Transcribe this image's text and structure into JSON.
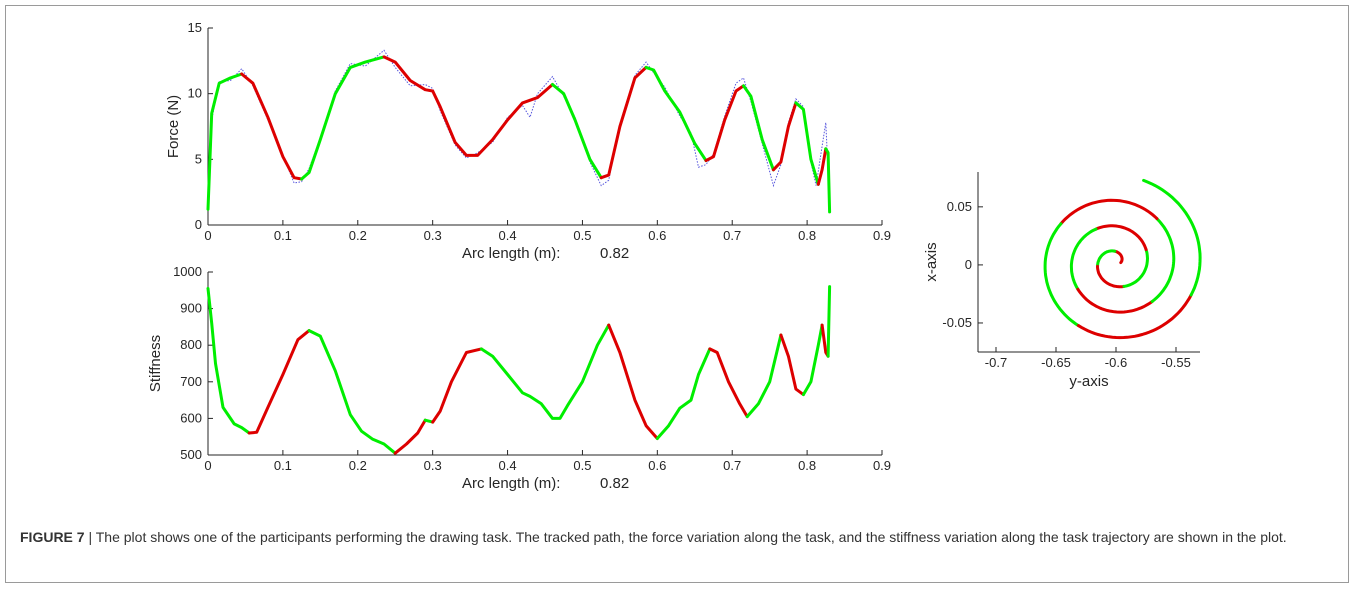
{
  "caption": {
    "label": "FIGURE 7",
    "separator": " | ",
    "text": "The plot shows one of the participants performing the drawing task. The tracked path, the force variation along the task, and the stiffness variation along the task trajectory are shown in the plot."
  },
  "colors": {
    "green": "#00ee00",
    "red": "#dd0000",
    "dotted": "#5555dd",
    "axis": "#262626"
  },
  "chart_data": [
    {
      "type": "line",
      "ylabel": "Force (N)",
      "xlabel": "Arc length (m):",
      "xlabel_value": "0.82",
      "xlim": [
        0,
        0.9
      ],
      "ylim": [
        0,
        15
      ],
      "xticks": [
        "0",
        "0.1",
        "0.2",
        "0.3",
        "0.4",
        "0.5",
        "0.6",
        "0.7",
        "0.8",
        "0.9"
      ],
      "yticks": [
        "0",
        "5",
        "10",
        "15"
      ],
      "segment_color_order": [
        "green",
        "red"
      ],
      "series": [
        {
          "style": "solid, color-coded green/red",
          "points": [
            [
              0,
              1.2
            ],
            [
              0.005,
              8.5
            ],
            [
              0.015,
              10.8
            ],
            [
              0.03,
              11.2
            ],
            [
              0.045,
              11.5
            ],
            [
              0.06,
              10.8
            ],
            [
              0.08,
              8.2
            ],
            [
              0.1,
              5.2
            ],
            [
              0.115,
              3.6
            ],
            [
              0.125,
              3.5
            ],
            [
              0.135,
              4.0
            ],
            [
              0.15,
              6.5
            ],
            [
              0.17,
              10.0
            ],
            [
              0.19,
              12.0
            ],
            [
              0.21,
              12.4
            ],
            [
              0.235,
              12.8
            ],
            [
              0.25,
              12.4
            ],
            [
              0.27,
              11.0
            ],
            [
              0.29,
              10.3
            ],
            [
              0.3,
              10.2
            ],
            [
              0.31,
              9.0
            ],
            [
              0.33,
              6.3
            ],
            [
              0.345,
              5.3
            ],
            [
              0.36,
              5.3
            ],
            [
              0.38,
              6.5
            ],
            [
              0.4,
              8.0
            ],
            [
              0.42,
              9.3
            ],
            [
              0.44,
              9.7
            ],
            [
              0.46,
              10.7
            ],
            [
              0.475,
              10.0
            ],
            [
              0.49,
              8.0
            ],
            [
              0.51,
              5.0
            ],
            [
              0.525,
              3.6
            ],
            [
              0.535,
              3.8
            ],
            [
              0.55,
              7.5
            ],
            [
              0.57,
              11.2
            ],
            [
              0.585,
              12.0
            ],
            [
              0.595,
              11.8
            ],
            [
              0.61,
              10.2
            ],
            [
              0.63,
              8.6
            ],
            [
              0.65,
              6.2
            ],
            [
              0.665,
              4.9
            ],
            [
              0.675,
              5.2
            ],
            [
              0.69,
              8.0
            ],
            [
              0.705,
              10.2
            ],
            [
              0.715,
              10.6
            ],
            [
              0.725,
              9.8
            ],
            [
              0.74,
              6.5
            ],
            [
              0.755,
              4.2
            ],
            [
              0.765,
              4.8
            ],
            [
              0.775,
              7.5
            ],
            [
              0.785,
              9.3
            ],
            [
              0.795,
              8.8
            ],
            [
              0.805,
              5.0
            ],
            [
              0.815,
              3.1
            ],
            [
              0.82,
              4.2
            ],
            [
              0.825,
              5.8
            ],
            [
              0.828,
              5.5
            ],
            [
              0.83,
              1.0
            ]
          ]
        },
        {
          "style": "dotted blue",
          "points": [
            [
              0,
              1.3
            ],
            [
              0.005,
              8.0
            ],
            [
              0.015,
              10.9
            ],
            [
              0.03,
              11.0
            ],
            [
              0.045,
              11.9
            ],
            [
              0.06,
              10.6
            ],
            [
              0.08,
              8.0
            ],
            [
              0.1,
              5.3
            ],
            [
              0.115,
              3.2
            ],
            [
              0.125,
              3.3
            ],
            [
              0.135,
              4.3
            ],
            [
              0.15,
              6.6
            ],
            [
              0.17,
              10.2
            ],
            [
              0.19,
              12.3
            ],
            [
              0.21,
              12.1
            ],
            [
              0.235,
              13.3
            ],
            [
              0.25,
              12.0
            ],
            [
              0.27,
              10.6
            ],
            [
              0.29,
              10.7
            ],
            [
              0.3,
              10.4
            ],
            [
              0.31,
              8.7
            ],
            [
              0.33,
              6.1
            ],
            [
              0.345,
              5.1
            ],
            [
              0.36,
              5.5
            ],
            [
              0.38,
              6.3
            ],
            [
              0.4,
              8.2
            ],
            [
              0.42,
              9.1
            ],
            [
              0.43,
              8.2
            ],
            [
              0.44,
              10.0
            ],
            [
              0.46,
              11.3
            ],
            [
              0.475,
              9.8
            ],
            [
              0.49,
              8.2
            ],
            [
              0.51,
              4.8
            ],
            [
              0.525,
              3.0
            ],
            [
              0.535,
              3.4
            ],
            [
              0.55,
              7.7
            ],
            [
              0.57,
              11.4
            ],
            [
              0.585,
              12.4
            ],
            [
              0.595,
              11.6
            ],
            [
              0.61,
              10.5
            ],
            [
              0.63,
              8.3
            ],
            [
              0.645,
              7.0
            ],
            [
              0.655,
              4.4
            ],
            [
              0.665,
              4.6
            ],
            [
              0.675,
              5.4
            ],
            [
              0.69,
              8.3
            ],
            [
              0.705,
              10.8
            ],
            [
              0.715,
              11.2
            ],
            [
              0.725,
              9.4
            ],
            [
              0.74,
              6.2
            ],
            [
              0.755,
              3.0
            ],
            [
              0.765,
              4.6
            ],
            [
              0.775,
              7.8
            ],
            [
              0.785,
              9.6
            ],
            [
              0.795,
              9.0
            ],
            [
              0.805,
              4.8
            ],
            [
              0.812,
              3.0
            ],
            [
              0.82,
              6.0
            ],
            [
              0.825,
              7.8
            ],
            [
              0.83,
              1.5
            ]
          ]
        }
      ]
    },
    {
      "type": "line",
      "ylabel": "Stiffness",
      "xlabel": "Arc length (m):",
      "xlabel_value": "0.82",
      "xlim": [
        0,
        0.9
      ],
      "ylim": [
        500,
        1000
      ],
      "xticks": [
        "0",
        "0.1",
        "0.2",
        "0.3",
        "0.4",
        "0.5",
        "0.6",
        "0.7",
        "0.8",
        "0.9"
      ],
      "yticks": [
        "500",
        "600",
        "700",
        "800",
        "900",
        "1000"
      ],
      "segment_color_order": [
        "green",
        "red"
      ],
      "series": [
        {
          "style": "solid, color-coded green/red",
          "points": [
            [
              0,
              955
            ],
            [
              0.005,
              860
            ],
            [
              0.01,
              750
            ],
            [
              0.02,
              630
            ],
            [
              0.035,
              585
            ],
            [
              0.045,
              575
            ],
            [
              0.055,
              560
            ],
            [
              0.065,
              562
            ],
            [
              0.08,
              630
            ],
            [
              0.1,
              720
            ],
            [
              0.12,
              815
            ],
            [
              0.135,
              840
            ],
            [
              0.15,
              825
            ],
            [
              0.17,
              730
            ],
            [
              0.19,
              610
            ],
            [
              0.205,
              565
            ],
            [
              0.22,
              543
            ],
            [
              0.235,
              530
            ],
            [
              0.25,
              505
            ],
            [
              0.265,
              530
            ],
            [
              0.28,
              560
            ],
            [
              0.29,
              595
            ],
            [
              0.3,
              590
            ],
            [
              0.31,
              620
            ],
            [
              0.325,
              700
            ],
            [
              0.345,
              780
            ],
            [
              0.365,
              790
            ],
            [
              0.38,
              770
            ],
            [
              0.4,
              720
            ],
            [
              0.42,
              670
            ],
            [
              0.43,
              660
            ],
            [
              0.445,
              640
            ],
            [
              0.46,
              600
            ],
            [
              0.47,
              600
            ],
            [
              0.48,
              635
            ],
            [
              0.5,
              700
            ],
            [
              0.52,
              800
            ],
            [
              0.535,
              855
            ],
            [
              0.55,
              780
            ],
            [
              0.57,
              650
            ],
            [
              0.585,
              580
            ],
            [
              0.6,
              545
            ],
            [
              0.615,
              580
            ],
            [
              0.63,
              628
            ],
            [
              0.645,
              650
            ],
            [
              0.655,
              720
            ],
            [
              0.67,
              790
            ],
            [
              0.68,
              780
            ],
            [
              0.695,
              700
            ],
            [
              0.71,
              640
            ],
            [
              0.72,
              605
            ],
            [
              0.735,
              640
            ],
            [
              0.75,
              700
            ],
            [
              0.765,
              828
            ],
            [
              0.775,
              770
            ],
            [
              0.785,
              680
            ],
            [
              0.795,
              665
            ],
            [
              0.805,
              700
            ],
            [
              0.815,
              800
            ],
            [
              0.82,
              855
            ],
            [
              0.825,
              780
            ],
            [
              0.828,
              770
            ],
            [
              0.83,
              960
            ]
          ]
        }
      ]
    },
    {
      "type": "line",
      "xlabel": "y-axis",
      "ylabel": "x-axis",
      "xlim": [
        -0.715,
        -0.53
      ],
      "ylim": [
        -0.075,
        0.08
      ],
      "xticks": [
        "-0.7",
        "-0.65",
        "-0.6",
        "-0.55"
      ],
      "yticks": [
        "-0.05",
        "0",
        "0.05"
      ],
      "segment_color_order": [
        "red",
        "green"
      ],
      "series": [
        {
          "style": "spiral path, color-coded red/green",
          "spiral": {
            "center_y_axis": -0.6,
            "center_x_axis": 0.002,
            "start_radius": 0.004,
            "radius_growth_per_turn": 0.022,
            "turns": 3.2,
            "start_angle_deg": 0
          }
        }
      ]
    }
  ]
}
